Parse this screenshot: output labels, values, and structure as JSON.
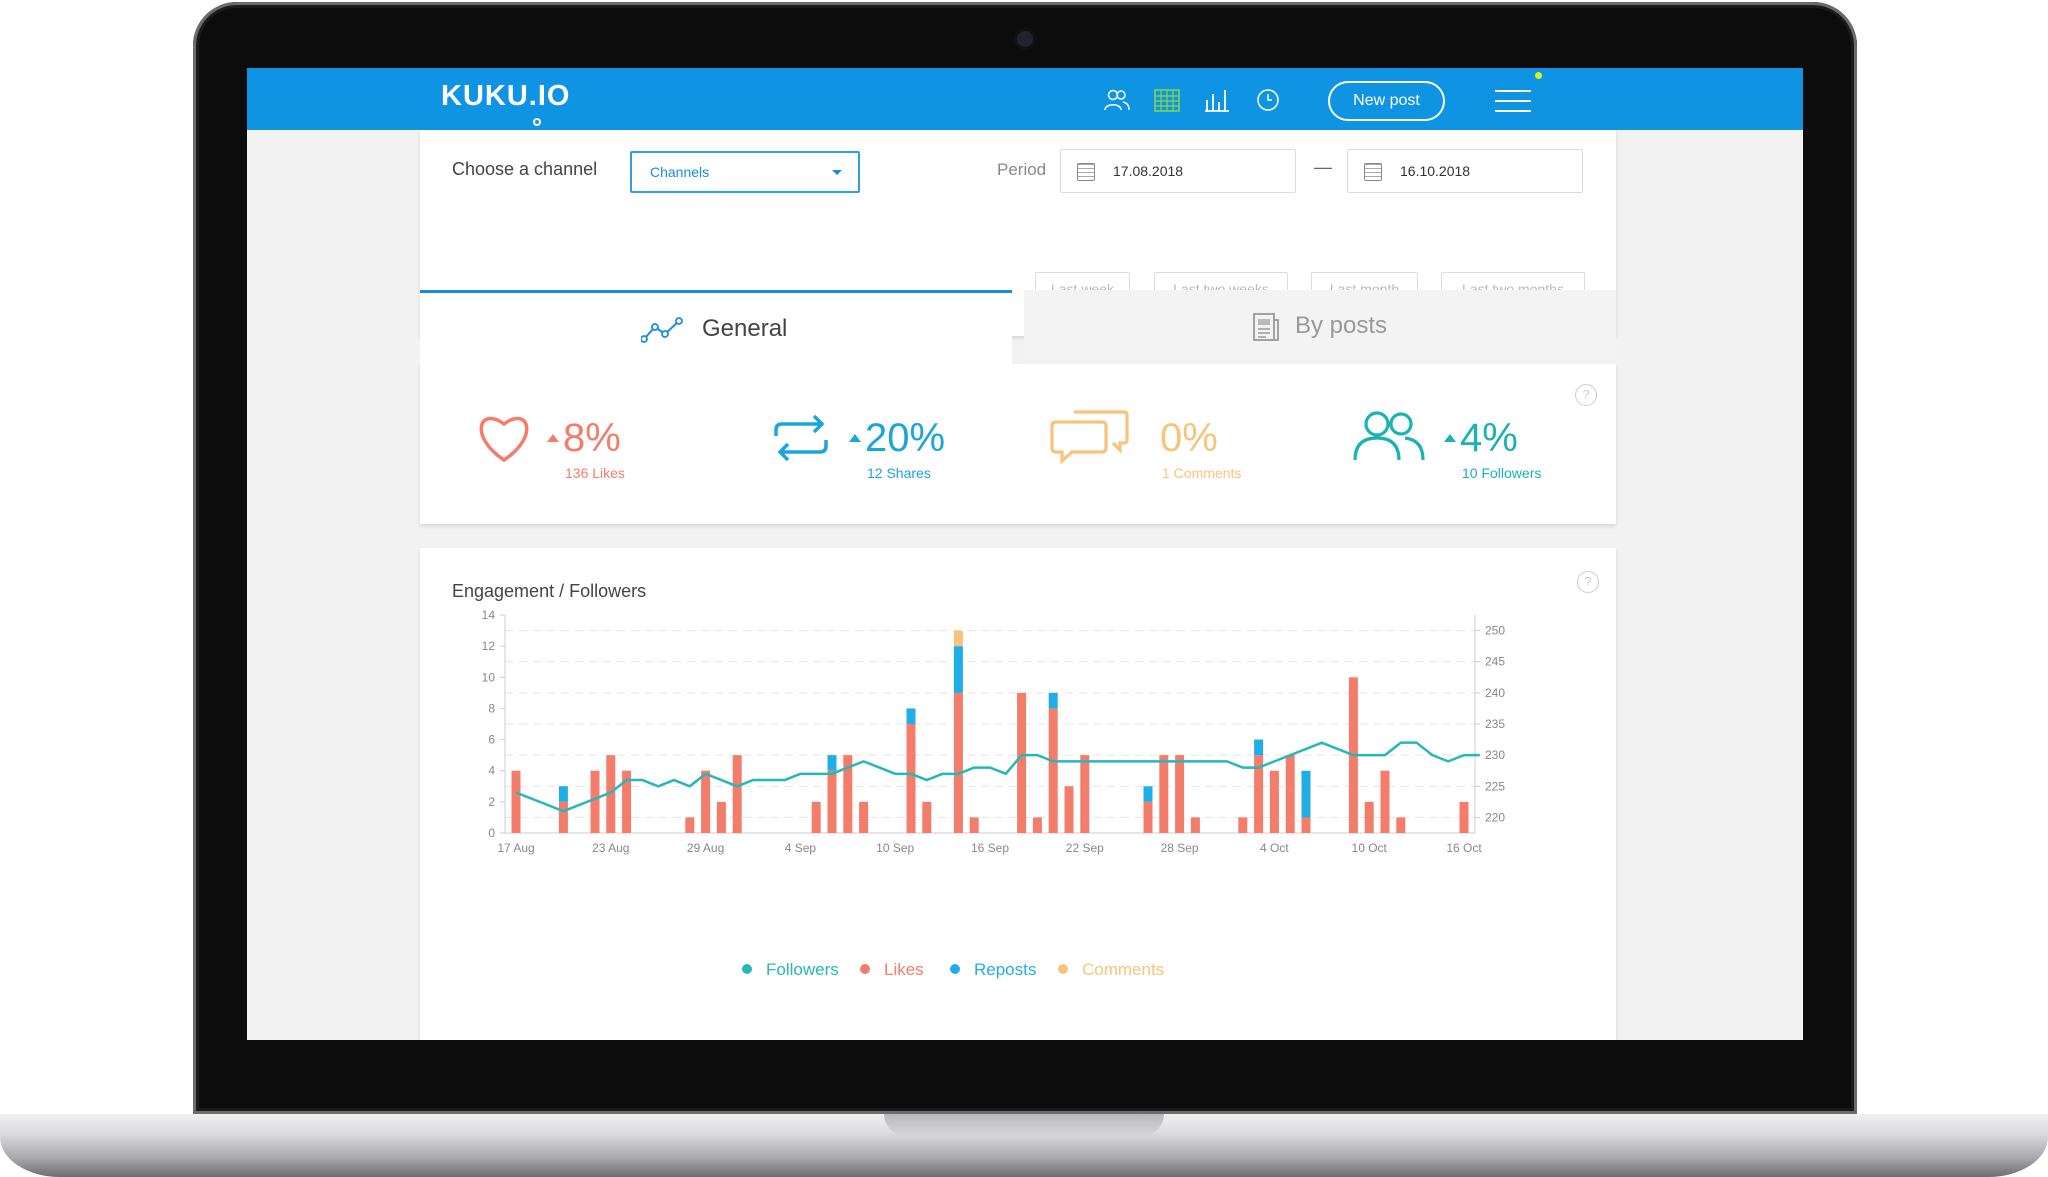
{
  "header": {
    "logo": "KUKU.IO",
    "new_post_label": "New post",
    "nav_icons": [
      "users-icon",
      "calendar-icon",
      "bar-chart-icon",
      "clock-icon"
    ]
  },
  "filter": {
    "choose_channel_label": "Choose a channel",
    "channel_select_value": "Channels",
    "period_label": "Period",
    "date_from": "17.08.2018",
    "date_dash": "—",
    "date_to": "16.10.2018",
    "ranges": [
      "Last week",
      "Last two weeks",
      "Last month",
      "Last two months"
    ]
  },
  "tabs": {
    "general": "General",
    "by_posts": "By posts"
  },
  "stats": [
    {
      "name": "likes",
      "pct": "8%",
      "sub": "136 Likes",
      "color": "#f47c6b",
      "trend": "up"
    },
    {
      "name": "shares",
      "pct": "20%",
      "sub": "12 Shares",
      "color": "#1aa6d9",
      "trend": "up"
    },
    {
      "name": "comments",
      "pct": "0%",
      "sub": "1 Comments",
      "color": "#f8c37a",
      "trend": "none"
    },
    {
      "name": "followers",
      "pct": "4%",
      "sub": "10 Followers",
      "color": "#1ab2b2",
      "trend": "up"
    }
  ],
  "help_glyph": "?",
  "chart_data": {
    "type": "bar",
    "title": "Engagement / Followers",
    "x_tick_labels": [
      "17 Aug",
      "23 Aug",
      "29 Aug",
      "4 Sep",
      "10 Sep",
      "16 Sep",
      "22 Sep",
      "28 Sep",
      "4 Oct",
      "10 Oct",
      "16 Oct"
    ],
    "y_left_range": [
      0,
      14
    ],
    "y_left_ticks": [
      0,
      2,
      4,
      6,
      8,
      10,
      12,
      14
    ],
    "y_right_range": [
      217.5,
      252.5
    ],
    "y_right_ticks": [
      220,
      225,
      230,
      235,
      240,
      245,
      250
    ],
    "grid": true,
    "legend_position": "bottom",
    "series_colors": {
      "likes": "#f47c6b",
      "reposts": "#21aee8",
      "comments": "#f8c37a",
      "followers": "#26b7b9"
    },
    "bars": [
      {
        "day": 0,
        "likes": 4,
        "reposts": 0,
        "comments": 0
      },
      {
        "day": 3,
        "likes": 2,
        "reposts": 1,
        "comments": 0
      },
      {
        "day": 5,
        "likes": 4,
        "reposts": 0,
        "comments": 0
      },
      {
        "day": 6,
        "likes": 5,
        "reposts": 0,
        "comments": 0
      },
      {
        "day": 7,
        "likes": 4,
        "reposts": 0,
        "comments": 0
      },
      {
        "day": 11,
        "likes": 1,
        "reposts": 0,
        "comments": 0
      },
      {
        "day": 12,
        "likes": 4,
        "reposts": 0,
        "comments": 0
      },
      {
        "day": 13,
        "likes": 2,
        "reposts": 0,
        "comments": 0
      },
      {
        "day": 14,
        "likes": 5,
        "reposts": 0,
        "comments": 0
      },
      {
        "day": 19,
        "likes": 2,
        "reposts": 0,
        "comments": 0
      },
      {
        "day": 20,
        "likes": 4,
        "reposts": 1,
        "comments": 0
      },
      {
        "day": 21,
        "likes": 5,
        "reposts": 0,
        "comments": 0
      },
      {
        "day": 22,
        "likes": 2,
        "reposts": 0,
        "comments": 0
      },
      {
        "day": 25,
        "likes": 7,
        "reposts": 1,
        "comments": 0
      },
      {
        "day": 26,
        "likes": 2,
        "reposts": 0,
        "comments": 0
      },
      {
        "day": 28,
        "likes": 9,
        "reposts": 3,
        "comments": 1
      },
      {
        "day": 29,
        "likes": 1,
        "reposts": 0,
        "comments": 0
      },
      {
        "day": 32,
        "likes": 9,
        "reposts": 0,
        "comments": 0
      },
      {
        "day": 33,
        "likes": 1,
        "reposts": 0,
        "comments": 0
      },
      {
        "day": 34,
        "likes": 8,
        "reposts": 1,
        "comments": 0
      },
      {
        "day": 35,
        "likes": 3,
        "reposts": 0,
        "comments": 0
      },
      {
        "day": 36,
        "likes": 5,
        "reposts": 0,
        "comments": 0
      },
      {
        "day": 40,
        "likes": 2,
        "reposts": 1,
        "comments": 0
      },
      {
        "day": 41,
        "likes": 5,
        "reposts": 0,
        "comments": 0
      },
      {
        "day": 42,
        "likes": 5,
        "reposts": 0,
        "comments": 0
      },
      {
        "day": 43,
        "likes": 1,
        "reposts": 0,
        "comments": 0
      },
      {
        "day": 46,
        "likes": 1,
        "reposts": 0,
        "comments": 0
      },
      {
        "day": 47,
        "likes": 5,
        "reposts": 1,
        "comments": 0
      },
      {
        "day": 48,
        "likes": 4,
        "reposts": 0,
        "comments": 0
      },
      {
        "day": 49,
        "likes": 5,
        "reposts": 0,
        "comments": 0
      },
      {
        "day": 50,
        "likes": 1,
        "reposts": 3,
        "comments": 0
      },
      {
        "day": 53,
        "likes": 10,
        "reposts": 0,
        "comments": 0
      },
      {
        "day": 54,
        "likes": 2,
        "reposts": 0,
        "comments": 0
      },
      {
        "day": 55,
        "likes": 4,
        "reposts": 0,
        "comments": 0
      },
      {
        "day": 56,
        "likes": 1,
        "reposts": 0,
        "comments": 0
      },
      {
        "day": 60,
        "likes": 2,
        "reposts": 0,
        "comments": 0
      }
    ],
    "followers_series": [
      [
        0,
        224
      ],
      [
        3,
        221
      ],
      [
        5,
        223
      ],
      [
        6,
        224
      ],
      [
        7,
        226
      ],
      [
        8,
        226
      ],
      [
        9,
        225
      ],
      [
        10,
        226
      ],
      [
        11,
        225
      ],
      [
        12,
        227
      ],
      [
        13,
        226
      ],
      [
        14,
        225
      ],
      [
        15,
        226
      ],
      [
        16,
        226
      ],
      [
        17,
        226
      ],
      [
        18,
        227
      ],
      [
        19,
        227
      ],
      [
        20,
        227
      ],
      [
        21,
        228
      ],
      [
        22,
        229
      ],
      [
        23,
        228
      ],
      [
        24,
        227
      ],
      [
        25,
        227
      ],
      [
        26,
        226
      ],
      [
        27,
        227
      ],
      [
        28,
        227
      ],
      [
        29,
        228
      ],
      [
        30,
        228
      ],
      [
        31,
        227
      ],
      [
        32,
        230
      ],
      [
        33,
        230
      ],
      [
        34,
        229
      ],
      [
        35,
        229
      ],
      [
        36,
        229
      ],
      [
        37,
        229
      ],
      [
        38,
        229
      ],
      [
        39,
        229
      ],
      [
        40,
        229
      ],
      [
        41,
        229
      ],
      [
        42,
        229
      ],
      [
        43,
        229
      ],
      [
        44,
        229
      ],
      [
        45,
        229
      ],
      [
        46,
        228
      ],
      [
        47,
        228
      ],
      [
        48,
        229
      ],
      [
        49,
        230
      ],
      [
        50,
        231
      ],
      [
        51,
        232
      ],
      [
        52,
        231
      ],
      [
        53,
        230
      ],
      [
        54,
        230
      ],
      [
        55,
        230
      ],
      [
        56,
        232
      ],
      [
        57,
        232
      ],
      [
        58,
        230
      ],
      [
        59,
        229
      ],
      [
        60,
        230
      ],
      [
        61,
        230
      ]
    ],
    "legend": [
      {
        "label": "Followers",
        "color": "#26b7b9"
      },
      {
        "label": "Likes",
        "color": "#f47c6b"
      },
      {
        "label": "Reposts",
        "color": "#21aee8"
      },
      {
        "label": "Comments",
        "color": "#f8c37a"
      }
    ]
  }
}
